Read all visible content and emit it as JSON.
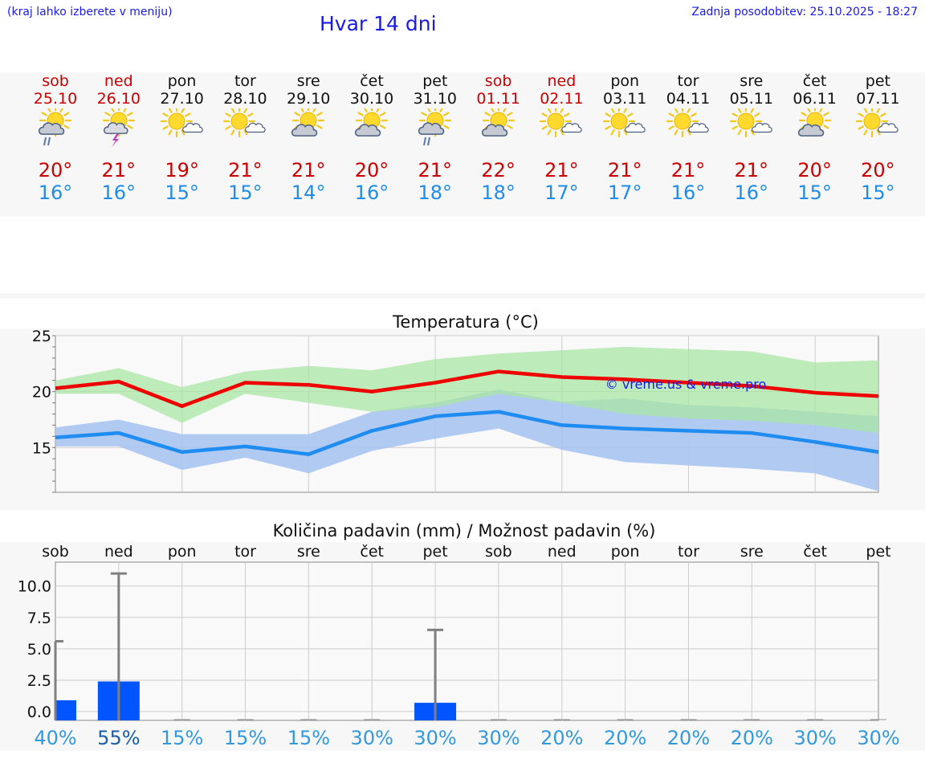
{
  "header": {
    "left_note": "(kraj lahko izberete v meniju)",
    "title": "Hvar 14 dni",
    "updated": "Zadnja posodobitev: 25.10.2025 - 18:27"
  },
  "colors": {
    "weekend": "#cc0000",
    "max_temp": "#cc0000",
    "min_temp": "#1f8ceb",
    "max_line": "#ee0000",
    "min_line": "#1e8cf0",
    "max_band": "#a9e6a4",
    "min_band": "#a8c4f0",
    "precip_bar": "#0055ff",
    "chance_text": "#3399dd",
    "chance_text_high": "#1a5fa8"
  },
  "days": [
    {
      "name": "sob",
      "date": "25.10",
      "weekend": true,
      "icon": "sun-cloud-rain-icon",
      "tmax": "20°",
      "tmin": "16°"
    },
    {
      "name": "ned",
      "date": "26.10",
      "weekend": true,
      "icon": "sun-cloud-thunder-icon",
      "tmax": "21°",
      "tmin": "16°"
    },
    {
      "name": "pon",
      "date": "27.10",
      "weekend": false,
      "icon": "sun-small-cloud-icon",
      "tmax": "19°",
      "tmin": "15°"
    },
    {
      "name": "tor",
      "date": "28.10",
      "weekend": false,
      "icon": "sun-small-cloud-icon",
      "tmax": "21°",
      "tmin": "15°"
    },
    {
      "name": "sre",
      "date": "29.10",
      "weekend": false,
      "icon": "sun-cloud-icon",
      "tmax": "21°",
      "tmin": "14°"
    },
    {
      "name": "čet",
      "date": "30.10",
      "weekend": false,
      "icon": "sun-cloud-icon",
      "tmax": "20°",
      "tmin": "16°"
    },
    {
      "name": "pet",
      "date": "31.10",
      "weekend": false,
      "icon": "sun-cloud-rain-icon",
      "tmax": "21°",
      "tmin": "18°"
    },
    {
      "name": "sob",
      "date": "01.11",
      "weekend": true,
      "icon": "sun-cloud-icon",
      "tmax": "22°",
      "tmin": "18°"
    },
    {
      "name": "ned",
      "date": "02.11",
      "weekend": true,
      "icon": "sun-small-cloud-icon",
      "tmax": "21°",
      "tmin": "17°"
    },
    {
      "name": "pon",
      "date": "03.11",
      "weekend": false,
      "icon": "sun-small-cloud-icon",
      "tmax": "21°",
      "tmin": "17°"
    },
    {
      "name": "tor",
      "date": "04.11",
      "weekend": false,
      "icon": "sun-small-cloud-icon",
      "tmax": "21°",
      "tmin": "16°"
    },
    {
      "name": "sre",
      "date": "05.11",
      "weekend": false,
      "icon": "sun-small-cloud-icon",
      "tmax": "21°",
      "tmin": "16°"
    },
    {
      "name": "čet",
      "date": "06.11",
      "weekend": false,
      "icon": "sun-cloud-icon",
      "tmax": "20°",
      "tmin": "15°"
    },
    {
      "name": "pet",
      "date": "07.11",
      "weekend": false,
      "icon": "sun-small-cloud-icon",
      "tmax": "20°",
      "tmin": "15°"
    }
  ],
  "chart_data": [
    {
      "type": "line",
      "title": "Temperatura (°C)",
      "watermark": "© vreme.us & vreme.pro",
      "ylim": [
        11,
        25
      ],
      "yticks": [
        15,
        20,
        25
      ],
      "x": [
        0,
        1,
        2,
        3,
        4,
        5,
        6,
        7,
        8,
        9,
        10,
        11,
        12,
        13
      ],
      "series": [
        {
          "name": "max",
          "values": [
            20.3,
            20.9,
            18.7,
            20.8,
            20.6,
            20.0,
            20.8,
            21.8,
            21.3,
            21.1,
            20.8,
            20.5,
            19.9,
            19.6
          ]
        },
        {
          "name": "min",
          "values": [
            15.9,
            16.3,
            14.6,
            15.1,
            14.4,
            16.5,
            17.8,
            18.2,
            17.0,
            16.7,
            16.5,
            16.3,
            15.5,
            14.6
          ]
        }
      ],
      "bands": [
        {
          "name": "max-range",
          "low": [
            19.8,
            19.8,
            17.2,
            19.8,
            19.0,
            18.2,
            18.6,
            19.8,
            19.0,
            18.0,
            17.6,
            17.4,
            17.0,
            16.3
          ],
          "high": [
            21.0,
            22.1,
            20.4,
            21.8,
            22.3,
            21.9,
            22.9,
            23.4,
            23.7,
            24.0,
            23.8,
            23.6,
            22.6,
            22.8
          ]
        },
        {
          "name": "min-range",
          "low": [
            15.1,
            15.1,
            13.0,
            14.1,
            12.7,
            14.7,
            15.8,
            16.7,
            14.8,
            13.7,
            13.4,
            13.1,
            12.7,
            11.1
          ],
          "high": [
            16.8,
            17.5,
            16.2,
            16.2,
            16.2,
            18.2,
            19.0,
            20.2,
            19.1,
            19.4,
            18.8,
            18.6,
            18.2,
            17.8
          ]
        }
      ]
    },
    {
      "type": "bar",
      "title": "Količina padavin (mm) / Možnost padavin (%)",
      "ylim": [
        -0.7,
        11.9
      ],
      "yticks": [
        0.0,
        2.5,
        5.0,
        7.5,
        10.0
      ],
      "ytick_labels": [
        "0.0",
        "2.5",
        "5.0",
        "7.5",
        "10.0"
      ],
      "categories": [
        "sob",
        "ned",
        "pon",
        "tor",
        "sre",
        "čet",
        "pet",
        "sob",
        "ned",
        "pon",
        "tor",
        "sre",
        "čet",
        "pet"
      ],
      "values": [
        0.9,
        2.4,
        0,
        0,
        0,
        0,
        0.7,
        0,
        0,
        0,
        0,
        0,
        0,
        0
      ],
      "error_max": [
        5.6,
        11.0,
        0,
        0,
        0,
        0,
        6.5,
        0,
        0,
        0,
        0,
        0,
        0,
        0
      ],
      "chance": [
        "40%",
        "55%",
        "15%",
        "15%",
        "15%",
        "30%",
        "30%",
        "30%",
        "20%",
        "20%",
        "20%",
        "20%",
        "30%",
        "30%"
      ]
    }
  ]
}
